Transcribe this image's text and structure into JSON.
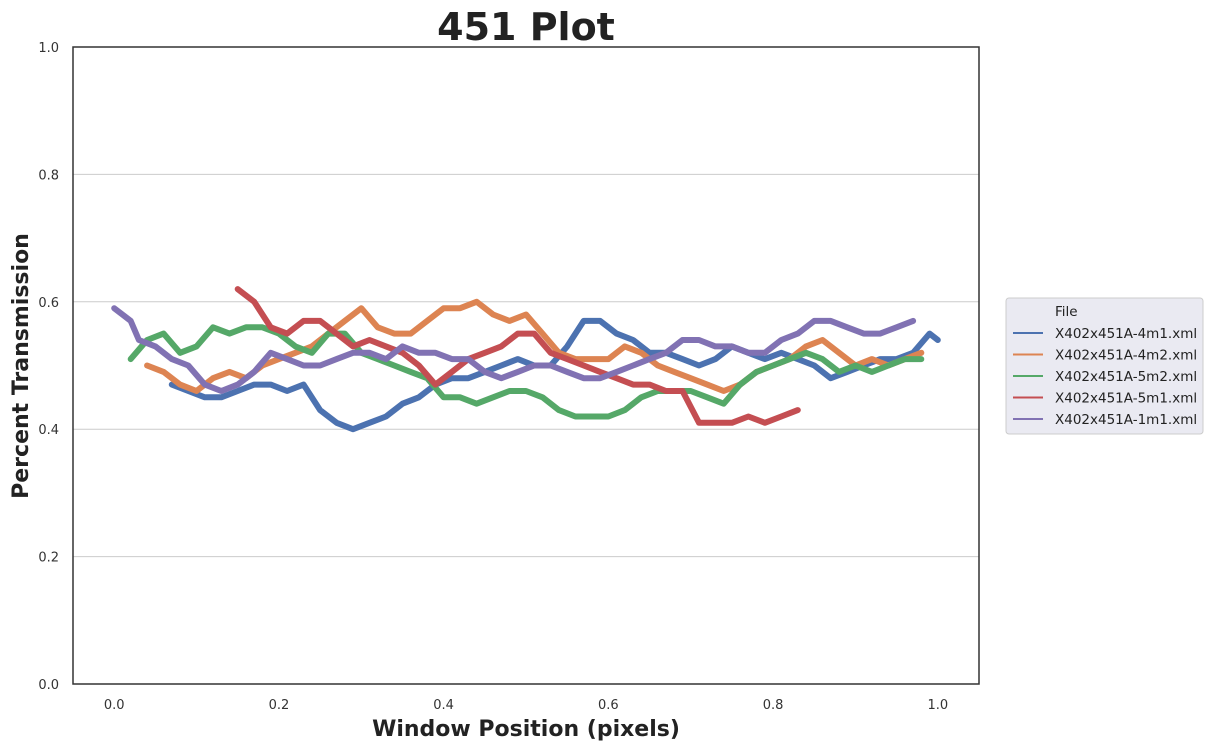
{
  "chart_data": {
    "type": "line",
    "title": "451 Plot",
    "xlabel": "Window Position (pixels)",
    "ylabel": "Percent Transmission",
    "xlim": [
      -0.05,
      1.05
    ],
    "ylim": [
      0.0,
      1.0
    ],
    "xticks": [
      "0.0",
      "0.2",
      "0.4",
      "0.6",
      "0.8",
      "1.0"
    ],
    "yticks": [
      "0.0",
      "0.2",
      "0.4",
      "0.6",
      "0.8",
      "1.0"
    ],
    "grid": "horizontal",
    "legend": {
      "title": "File",
      "placement": "right"
    },
    "series": [
      {
        "name": "X402x451A-4m1.xml",
        "color": "#4c72b0",
        "x": [
          0.07,
          0.09,
          0.11,
          0.13,
          0.15,
          0.17,
          0.19,
          0.21,
          0.23,
          0.25,
          0.27,
          0.29,
          0.31,
          0.33,
          0.35,
          0.37,
          0.39,
          0.41,
          0.43,
          0.45,
          0.47,
          0.49,
          0.51,
          0.53,
          0.55,
          0.57,
          0.59,
          0.61,
          0.63,
          0.65,
          0.67,
          0.69,
          0.71,
          0.73,
          0.75,
          0.77,
          0.79,
          0.81,
          0.83,
          0.85,
          0.87,
          0.89,
          0.91,
          0.93,
          0.95,
          0.97,
          0.99,
          1.0
        ],
        "y": [
          0.47,
          0.46,
          0.45,
          0.45,
          0.46,
          0.47,
          0.47,
          0.46,
          0.47,
          0.43,
          0.41,
          0.4,
          0.41,
          0.42,
          0.44,
          0.45,
          0.47,
          0.48,
          0.48,
          0.49,
          0.5,
          0.51,
          0.5,
          0.5,
          0.53,
          0.57,
          0.57,
          0.55,
          0.54,
          0.52,
          0.52,
          0.51,
          0.5,
          0.51,
          0.53,
          0.52,
          0.51,
          0.52,
          0.51,
          0.5,
          0.48,
          0.49,
          0.5,
          0.51,
          0.51,
          0.52,
          0.55,
          0.54
        ]
      },
      {
        "name": "X402x451A-4m2.xml",
        "color": "#dd8452",
        "x": [
          0.04,
          0.06,
          0.08,
          0.1,
          0.12,
          0.14,
          0.16,
          0.18,
          0.2,
          0.22,
          0.24,
          0.26,
          0.28,
          0.3,
          0.32,
          0.34,
          0.36,
          0.38,
          0.4,
          0.42,
          0.44,
          0.46,
          0.48,
          0.5,
          0.52,
          0.54,
          0.56,
          0.58,
          0.6,
          0.62,
          0.64,
          0.66,
          0.68,
          0.7,
          0.72,
          0.74,
          0.76,
          0.78,
          0.8,
          0.82,
          0.84,
          0.86,
          0.88,
          0.9,
          0.92,
          0.94,
          0.96,
          0.98
        ],
        "y": [
          0.5,
          0.49,
          0.47,
          0.46,
          0.48,
          0.49,
          0.48,
          0.5,
          0.51,
          0.52,
          0.53,
          0.55,
          0.57,
          0.59,
          0.56,
          0.55,
          0.55,
          0.57,
          0.59,
          0.59,
          0.6,
          0.58,
          0.57,
          0.58,
          0.55,
          0.52,
          0.51,
          0.51,
          0.51,
          0.53,
          0.52,
          0.5,
          0.49,
          0.48,
          0.47,
          0.46,
          0.47,
          0.49,
          0.5,
          0.51,
          0.53,
          0.54,
          0.52,
          0.5,
          0.51,
          0.5,
          0.51,
          0.52
        ]
      },
      {
        "name": "X402x451A-5m2.xml",
        "color": "#55a868",
        "x": [
          0.02,
          0.04,
          0.06,
          0.08,
          0.1,
          0.12,
          0.14,
          0.16,
          0.18,
          0.2,
          0.22,
          0.24,
          0.26,
          0.28,
          0.3,
          0.32,
          0.34,
          0.36,
          0.38,
          0.4,
          0.42,
          0.44,
          0.46,
          0.48,
          0.5,
          0.52,
          0.54,
          0.56,
          0.58,
          0.6,
          0.62,
          0.64,
          0.66,
          0.68,
          0.7,
          0.72,
          0.74,
          0.76,
          0.78,
          0.8,
          0.82,
          0.84,
          0.86,
          0.88,
          0.9,
          0.92,
          0.94,
          0.96,
          0.98
        ],
        "y": [
          0.51,
          0.54,
          0.55,
          0.52,
          0.53,
          0.56,
          0.55,
          0.56,
          0.56,
          0.55,
          0.53,
          0.52,
          0.55,
          0.55,
          0.52,
          0.51,
          0.5,
          0.49,
          0.48,
          0.45,
          0.45,
          0.44,
          0.45,
          0.46,
          0.46,
          0.45,
          0.43,
          0.42,
          0.42,
          0.42,
          0.43,
          0.45,
          0.46,
          0.46,
          0.46,
          0.45,
          0.44,
          0.47,
          0.49,
          0.5,
          0.51,
          0.52,
          0.51,
          0.49,
          0.5,
          0.49,
          0.5,
          0.51,
          0.51
        ]
      },
      {
        "name": "X402x451A-5m1.xml",
        "color": "#c44e52",
        "x": [
          0.15,
          0.17,
          0.19,
          0.21,
          0.23,
          0.25,
          0.27,
          0.29,
          0.31,
          0.33,
          0.35,
          0.37,
          0.39,
          0.41,
          0.43,
          0.45,
          0.47,
          0.49,
          0.51,
          0.53,
          0.55,
          0.57,
          0.59,
          0.61,
          0.63,
          0.65,
          0.67,
          0.69,
          0.71,
          0.73,
          0.75,
          0.77,
          0.79,
          0.81,
          0.83
        ],
        "y": [
          0.62,
          0.6,
          0.56,
          0.55,
          0.57,
          0.57,
          0.55,
          0.53,
          0.54,
          0.53,
          0.52,
          0.5,
          0.47,
          0.49,
          0.51,
          0.52,
          0.53,
          0.55,
          0.55,
          0.52,
          0.51,
          0.5,
          0.49,
          0.48,
          0.47,
          0.47,
          0.46,
          0.46,
          0.41,
          0.41,
          0.41,
          0.42,
          0.41,
          0.42,
          0.43
        ]
      },
      {
        "name": "X402x451A-1m1.xml",
        "color": "#8172b3",
        "x": [
          0.0,
          0.01,
          0.02,
          0.03,
          0.05,
          0.07,
          0.09,
          0.11,
          0.13,
          0.15,
          0.17,
          0.19,
          0.21,
          0.23,
          0.25,
          0.27,
          0.29,
          0.31,
          0.33,
          0.35,
          0.37,
          0.39,
          0.41,
          0.43,
          0.45,
          0.47,
          0.49,
          0.51,
          0.53,
          0.55,
          0.57,
          0.59,
          0.61,
          0.63,
          0.65,
          0.67,
          0.69,
          0.71,
          0.73,
          0.75,
          0.77,
          0.79,
          0.81,
          0.83,
          0.85,
          0.87,
          0.89,
          0.91,
          0.93,
          0.95,
          0.97
        ],
        "y": [
          0.59,
          0.58,
          0.57,
          0.54,
          0.53,
          0.51,
          0.5,
          0.47,
          0.46,
          0.47,
          0.49,
          0.52,
          0.51,
          0.5,
          0.5,
          0.51,
          0.52,
          0.52,
          0.51,
          0.53,
          0.52,
          0.52,
          0.51,
          0.51,
          0.49,
          0.48,
          0.49,
          0.5,
          0.5,
          0.49,
          0.48,
          0.48,
          0.49,
          0.5,
          0.51,
          0.52,
          0.54,
          0.54,
          0.53,
          0.53,
          0.52,
          0.52,
          0.54,
          0.55,
          0.57,
          0.57,
          0.56,
          0.55,
          0.55,
          0.56,
          0.57
        ]
      }
    ]
  }
}
